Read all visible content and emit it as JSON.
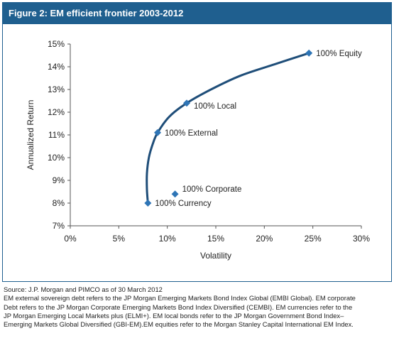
{
  "header": {
    "title": "Figure 2:  EM efficient frontier 2003-2012"
  },
  "chart_data": {
    "type": "line",
    "title": "Figure 2:  EM efficient frontier 2003-2012",
    "xlabel": "Volatility",
    "ylabel": "Annualized Return",
    "xlim": [
      0,
      30
    ],
    "ylim": [
      7,
      15
    ],
    "x_ticks": [
      "0%",
      "5%",
      "10%",
      "15%",
      "20%",
      "25%",
      "30%"
    ],
    "y_ticks": [
      "7%",
      "8%",
      "9%",
      "10%",
      "11%",
      "12%",
      "13%",
      "14%",
      "15%"
    ],
    "grid": false,
    "series": [
      {
        "name": "",
        "color": "#1f4e79",
        "x": [
          8.0,
          7.9,
          7.9,
          8.1,
          8.5,
          9.0,
          10.2,
          12.0,
          14.5,
          17.5,
          21.0,
          24.6
        ],
        "y": [
          8.0,
          8.6,
          9.3,
          10.0,
          10.6,
          11.1,
          11.8,
          12.4,
          13.0,
          13.6,
          14.1,
          14.6
        ]
      }
    ],
    "points": [
      {
        "label": "100% Equity",
        "x": 24.6,
        "y": 14.6
      },
      {
        "label": "100% Local",
        "x": 12.0,
        "y": 12.4
      },
      {
        "label": "100% External",
        "x": 9.0,
        "y": 11.1
      },
      {
        "label": "100% Corporate",
        "x": 10.8,
        "y": 8.4
      },
      {
        "label": "100% Currency",
        "x": 8.0,
        "y": 8.0
      }
    ],
    "marker_color": "#2e75b6"
  },
  "source": {
    "lines": [
      "Source: J.P. Morgan and PIMCO as of 30 March 2012",
      "EM external sovereign debt refers to the JP Morgan Emerging Markets Bond Index Global (EMBI Global). EM corporate",
      "Debt refers to the JP Morgan Corporate Emerging Markets Bond Index Diversified (CEMBI). EM currencies refer to the",
      "JP Morgan Emerging Local Markets plus (ELMI+). EM local bonds refer to the JP Morgan Government Bond Index–",
      "Emerging Markets Global Diversified (GBI-EM).EM equities refer to the Morgan Stanley Capital International EM Index."
    ]
  }
}
